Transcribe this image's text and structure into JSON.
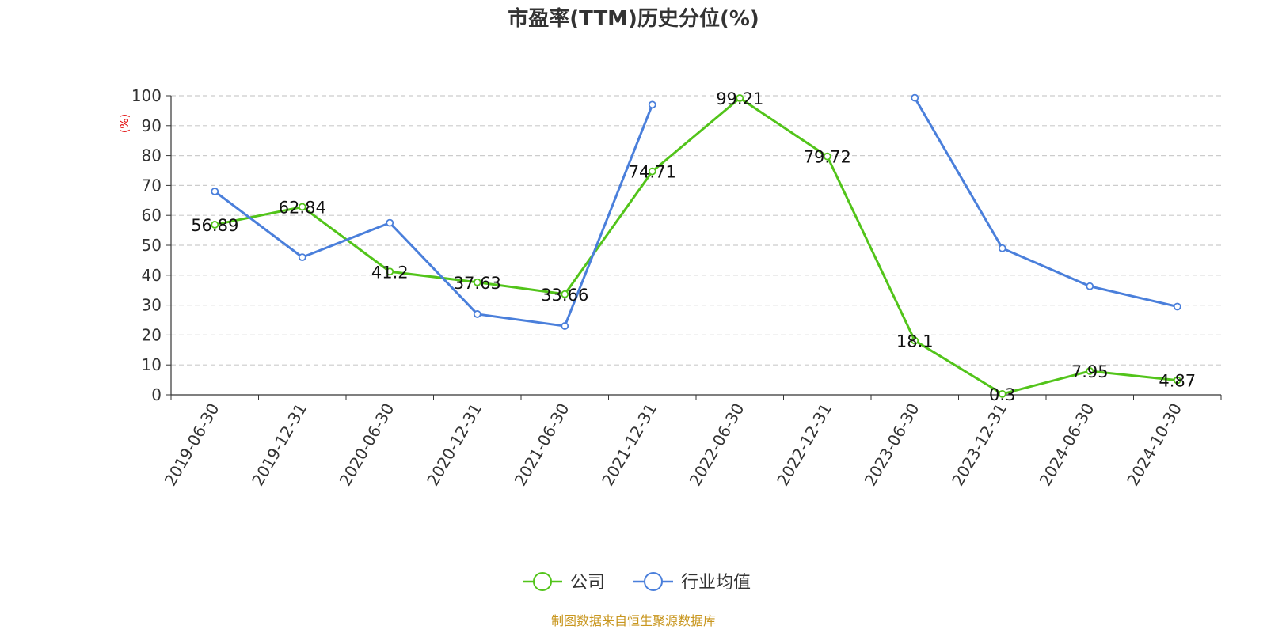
{
  "chart_data": {
    "type": "line",
    "title": "市盈率(TTM)历史分位(%)",
    "ylabel": "(%)",
    "ylim": [
      0,
      100
    ],
    "yticks": [
      0,
      10,
      20,
      30,
      40,
      50,
      60,
      70,
      80,
      90,
      100
    ],
    "grid": true,
    "legend_position": "bottom",
    "categories": [
      "2019-06-30",
      "2019-12-31",
      "2020-06-30",
      "2020-12-31",
      "2021-06-30",
      "2021-12-31",
      "2022-06-30",
      "2022-12-31",
      "2023-06-30",
      "2023-12-31",
      "2024-06-30",
      "2024-10-30"
    ],
    "series": [
      {
        "name": "公司",
        "color": "#52c41a",
        "values": [
          56.89,
          62.84,
          41.2,
          37.63,
          33.66,
          74.71,
          99.21,
          79.72,
          18.1,
          0.3,
          7.95,
          4.87
        ],
        "labels": [
          "56.89",
          "62.84",
          "41.2",
          "37.63",
          "33.66",
          "74.71",
          "99.21",
          "79.72",
          "18.1",
          "0.3",
          "7.95",
          "4.87"
        ]
      },
      {
        "name": "行业均值",
        "color": "#4a7fdb",
        "values": [
          68,
          46,
          57.5,
          27,
          23,
          97,
          null,
          null,
          99.3,
          49,
          36.3,
          29.5
        ]
      }
    ]
  },
  "source_text": "制图数据来自恒生聚源数据库"
}
